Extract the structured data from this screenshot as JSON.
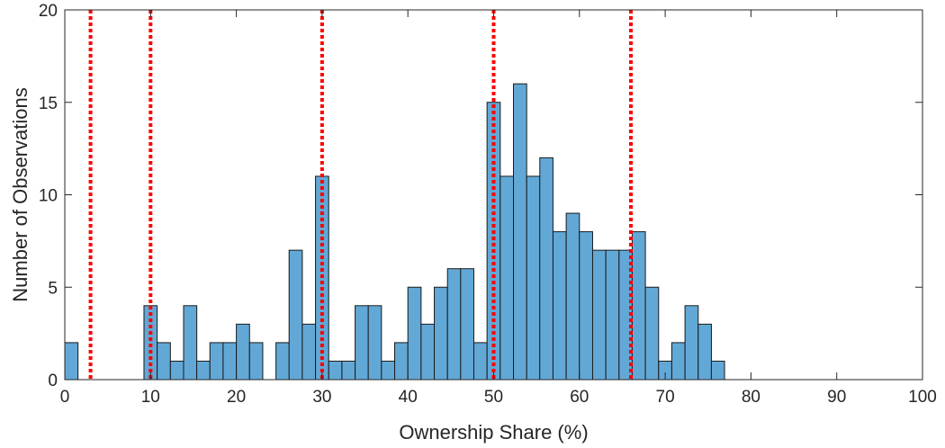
{
  "chart_data": {
    "type": "bar",
    "title": "",
    "xlabel": "Ownership Share (%)",
    "ylabel": "Number of Observations",
    "xlim": [
      0,
      100
    ],
    "ylim": [
      0,
      20
    ],
    "xticks": [
      0,
      10,
      20,
      30,
      40,
      50,
      60,
      70,
      80,
      90,
      100
    ],
    "yticks": [
      0,
      5,
      10,
      15,
      20
    ],
    "grid": false,
    "bin_width": 1.54,
    "bins": [
      {
        "x": 0.0,
        "count": 2
      },
      {
        "x": 1.54,
        "count": 0
      },
      {
        "x": 3.08,
        "count": 0
      },
      {
        "x": 4.62,
        "count": 0
      },
      {
        "x": 6.15,
        "count": 0
      },
      {
        "x": 7.69,
        "count": 0
      },
      {
        "x": 9.23,
        "count": 4
      },
      {
        "x": 10.77,
        "count": 2
      },
      {
        "x": 12.31,
        "count": 1
      },
      {
        "x": 13.85,
        "count": 4
      },
      {
        "x": 15.38,
        "count": 1
      },
      {
        "x": 16.92,
        "count": 2
      },
      {
        "x": 18.46,
        "count": 2
      },
      {
        "x": 20.0,
        "count": 3
      },
      {
        "x": 21.54,
        "count": 2
      },
      {
        "x": 23.08,
        "count": 0
      },
      {
        "x": 24.62,
        "count": 2
      },
      {
        "x": 26.15,
        "count": 7
      },
      {
        "x": 27.69,
        "count": 3
      },
      {
        "x": 29.23,
        "count": 11
      },
      {
        "x": 30.77,
        "count": 1
      },
      {
        "x": 32.31,
        "count": 1
      },
      {
        "x": 33.85,
        "count": 4
      },
      {
        "x": 35.38,
        "count": 4
      },
      {
        "x": 36.92,
        "count": 1
      },
      {
        "x": 38.46,
        "count": 2
      },
      {
        "x": 40.0,
        "count": 5
      },
      {
        "x": 41.54,
        "count": 3
      },
      {
        "x": 43.08,
        "count": 5
      },
      {
        "x": 44.62,
        "count": 6
      },
      {
        "x": 46.15,
        "count": 6
      },
      {
        "x": 47.69,
        "count": 2
      },
      {
        "x": 49.23,
        "count": 15
      },
      {
        "x": 50.77,
        "count": 11
      },
      {
        "x": 52.31,
        "count": 16
      },
      {
        "x": 53.85,
        "count": 11
      },
      {
        "x": 55.38,
        "count": 12
      },
      {
        "x": 56.92,
        "count": 8
      },
      {
        "x": 58.46,
        "count": 9
      },
      {
        "x": 60.0,
        "count": 8
      },
      {
        "x": 61.54,
        "count": 7
      },
      {
        "x": 63.08,
        "count": 7
      },
      {
        "x": 64.62,
        "count": 7
      },
      {
        "x": 66.15,
        "count": 8
      },
      {
        "x": 67.69,
        "count": 5
      },
      {
        "x": 69.23,
        "count": 1
      },
      {
        "x": 70.77,
        "count": 2
      },
      {
        "x": 72.31,
        "count": 4
      },
      {
        "x": 73.85,
        "count": 3
      },
      {
        "x": 75.38,
        "count": 1
      }
    ],
    "reference_lines": [
      3,
      10,
      30,
      50,
      66
    ],
    "bar_color": "#62A8D7",
    "bar_edge_color": "#1a1a1a",
    "reference_line_color": "#FF0000"
  }
}
